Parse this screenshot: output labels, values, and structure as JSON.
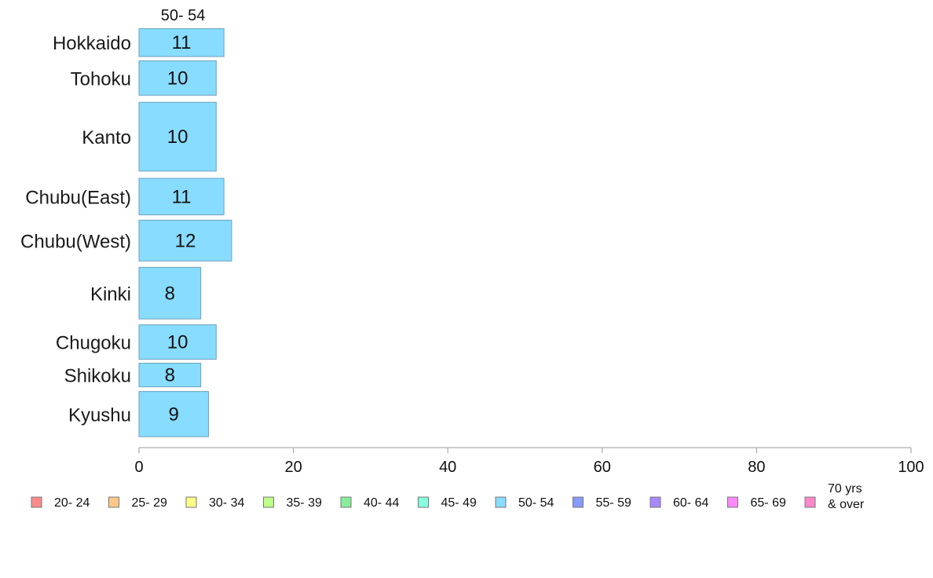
{
  "chart_data": {
    "type": "bar",
    "orientation": "horizontal",
    "stacked": true,
    "series_title": "50- 54",
    "categories": [
      "Hokkaido",
      "Tohoku",
      "Kanto",
      "Chubu(East)",
      "Chubu(West)",
      "Kinki",
      "Chugoku",
      "Shikoku",
      "Kyushu"
    ],
    "category_weights": [
      0.65,
      0.8,
      1.6,
      0.85,
      0.95,
      1.2,
      0.8,
      0.55,
      1.05
    ],
    "series": [
      {
        "name": "50- 54",
        "color": "#88dcff",
        "values": [
          11,
          10,
          10,
          11,
          12,
          8,
          10,
          8,
          9
        ],
        "labels": [
          "11",
          "10",
          "10",
          "11",
          "12",
          "8",
          "10",
          "8",
          "9"
        ]
      }
    ],
    "xlim": [
      0,
      100
    ],
    "x_ticks": [
      0,
      20,
      40,
      60,
      80,
      100
    ],
    "grid": false,
    "legend_position": "bottom",
    "legend": [
      {
        "label": "20- 24",
        "color": "#ff8a8a"
      },
      {
        "label": "25- 29",
        "color": "#ffc888"
      },
      {
        "label": "30- 34",
        "color": "#ffff88"
      },
      {
        "label": "35- 39",
        "color": "#bbff88"
      },
      {
        "label": "40- 44",
        "color": "#88ee99"
      },
      {
        "label": "45- 49",
        "color": "#88ffdd"
      },
      {
        "label": "50- 54",
        "color": "#88dcff"
      },
      {
        "label": "55- 59",
        "color": "#8899ff"
      },
      {
        "label": "60- 64",
        "color": "#aa88ff"
      },
      {
        "label": "65- 69",
        "color": "#ff88ff"
      },
      {
        "label": "70 yrs\n& over",
        "color": "#ff88cc"
      }
    ]
  }
}
